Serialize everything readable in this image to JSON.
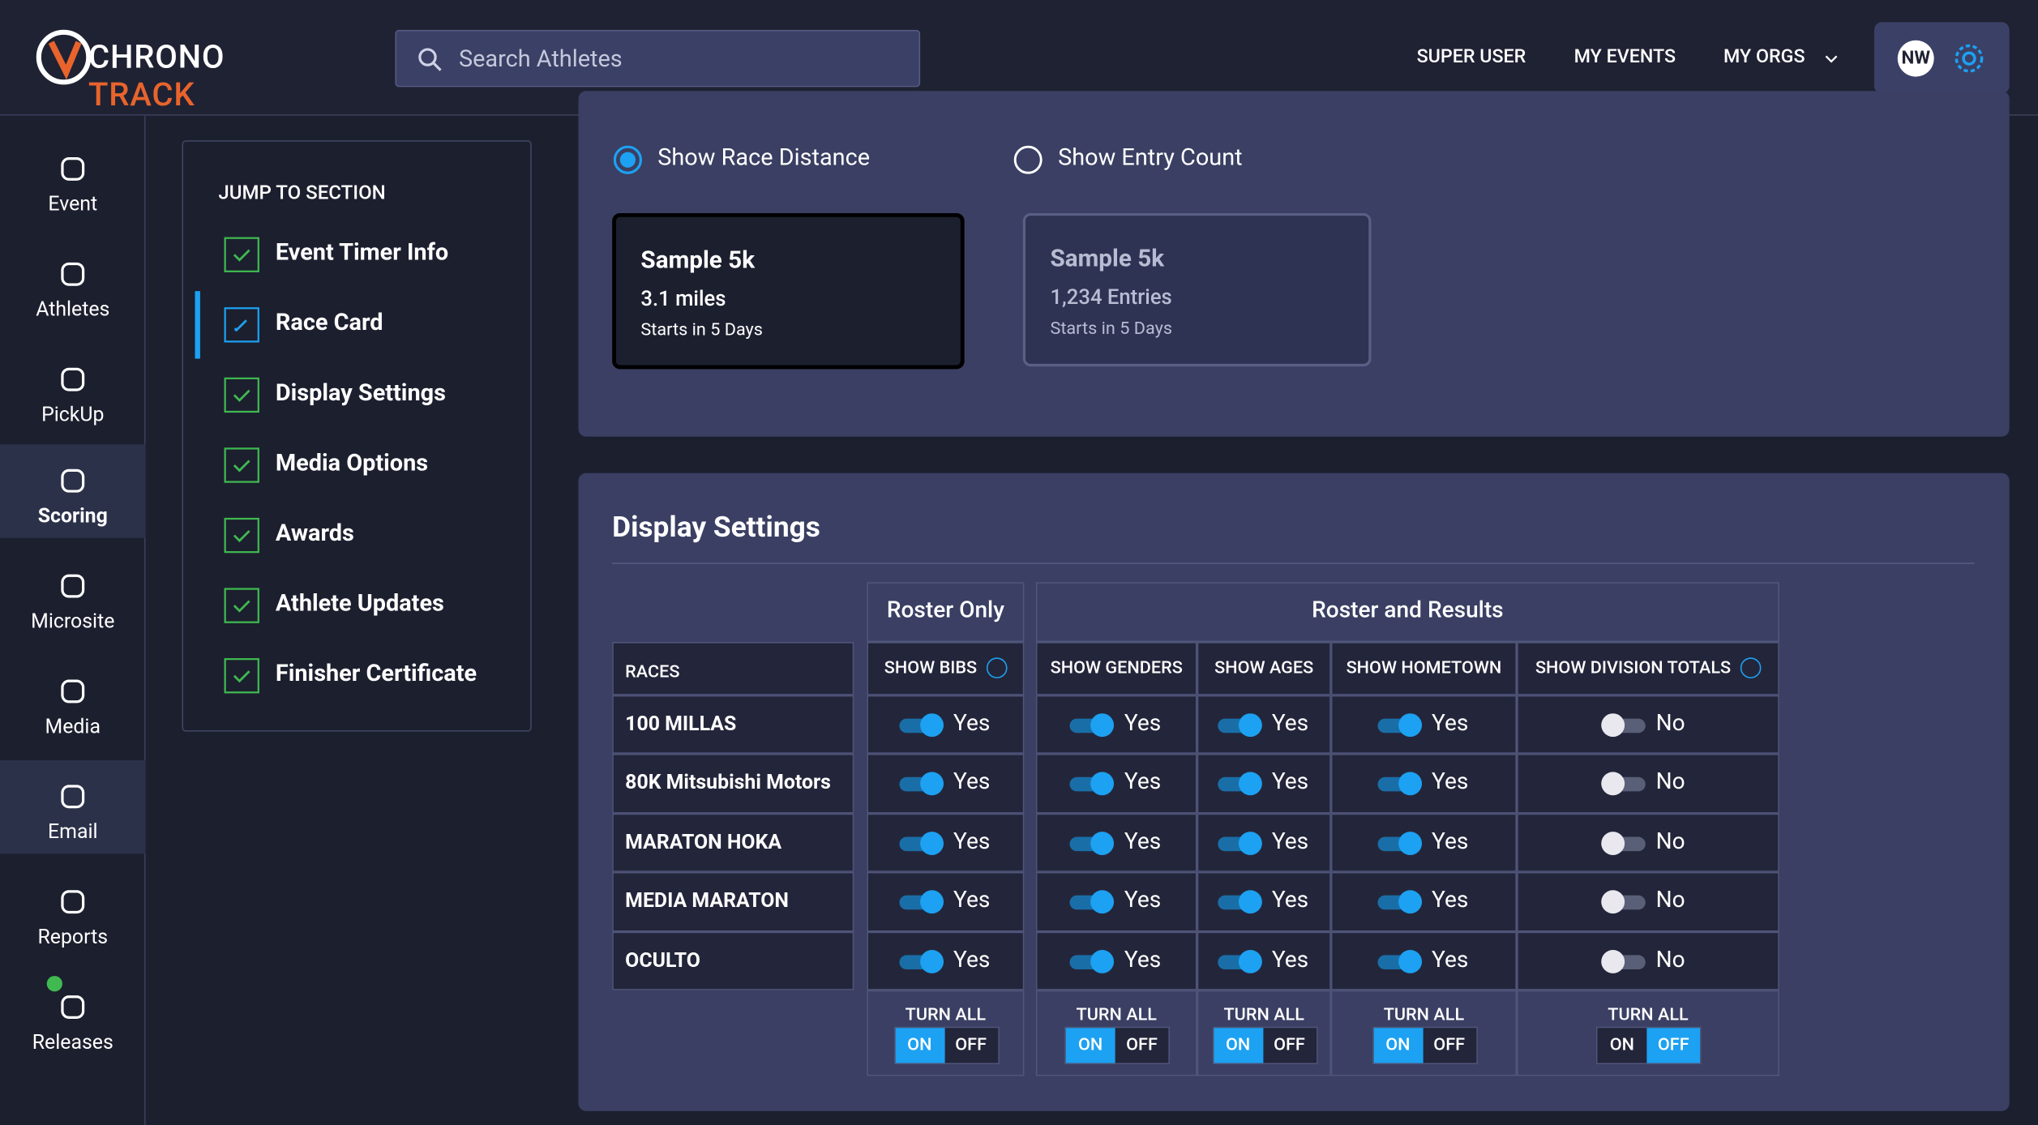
{
  "header": {
    "logo_primary": "CHRONO",
    "logo_accent": "TRACK",
    "search_placeholder": "Search Athletes",
    "nav": [
      "SUPER USER",
      "MY EVENTS",
      "MY ORGS"
    ],
    "avatar": "NW"
  },
  "sidebar": {
    "items": [
      {
        "label": "Event"
      },
      {
        "label": "Athletes"
      },
      {
        "label": "PickUp"
      },
      {
        "label": "Scoring",
        "active": true
      },
      {
        "label": "Microsite"
      },
      {
        "label": "Media"
      },
      {
        "label": "Email",
        "active": true
      },
      {
        "label": "Reports"
      },
      {
        "label": "Releases"
      }
    ]
  },
  "jump": {
    "title": "JUMP TO SECTION",
    "items": [
      {
        "label": "Event Timer Info"
      },
      {
        "label": "Race Card",
        "current": true
      },
      {
        "label": "Display Settings"
      },
      {
        "label": "Media Options"
      },
      {
        "label": "Awards"
      },
      {
        "label": "Athlete Updates"
      },
      {
        "label": "Finisher Certificate"
      }
    ]
  },
  "race_card": {
    "options": [
      {
        "label": "Show Race Distance",
        "selected": true
      },
      {
        "label": "Show Entry Count",
        "selected": false
      }
    ],
    "cards": [
      {
        "name": "Sample 5k",
        "detail": "3.1 miles",
        "starts": "Starts in 5 Days",
        "selected": true
      },
      {
        "name": "Sample 5k",
        "detail": "1,234 Entries",
        "starts": "Starts in 5 Days",
        "selected": false
      }
    ]
  },
  "display_settings": {
    "title": "Display Settings",
    "groups": [
      "Roster Only",
      "Roster and Results"
    ],
    "races_header": "RACES",
    "columns": [
      "SHOW BIBS",
      "SHOW GENDERS",
      "SHOW AGES",
      "SHOW HOMETOWN",
      "SHOW DIVISION TOTALS"
    ],
    "rows": [
      {
        "race": "100 MILLAS",
        "values": [
          "Yes",
          "Yes",
          "Yes",
          "Yes",
          "No"
        ]
      },
      {
        "race": "80K Mitsubishi Motors",
        "values": [
          "Yes",
          "Yes",
          "Yes",
          "Yes",
          "No"
        ]
      },
      {
        "race": "MARATON HOKA",
        "values": [
          "Yes",
          "Yes",
          "Yes",
          "Yes",
          "No"
        ]
      },
      {
        "race": "MEDIA MARATON",
        "values": [
          "Yes",
          "Yes",
          "Yes",
          "Yes",
          "No"
        ]
      },
      {
        "race": "OCULTO",
        "values": [
          "Yes",
          "Yes",
          "Yes",
          "Yes",
          "No"
        ]
      }
    ],
    "turn_all_label": "TURN ALL",
    "on_label": "ON",
    "off_label": "OFF",
    "turn_all_state": [
      "on",
      "on",
      "on",
      "on",
      "off"
    ]
  }
}
